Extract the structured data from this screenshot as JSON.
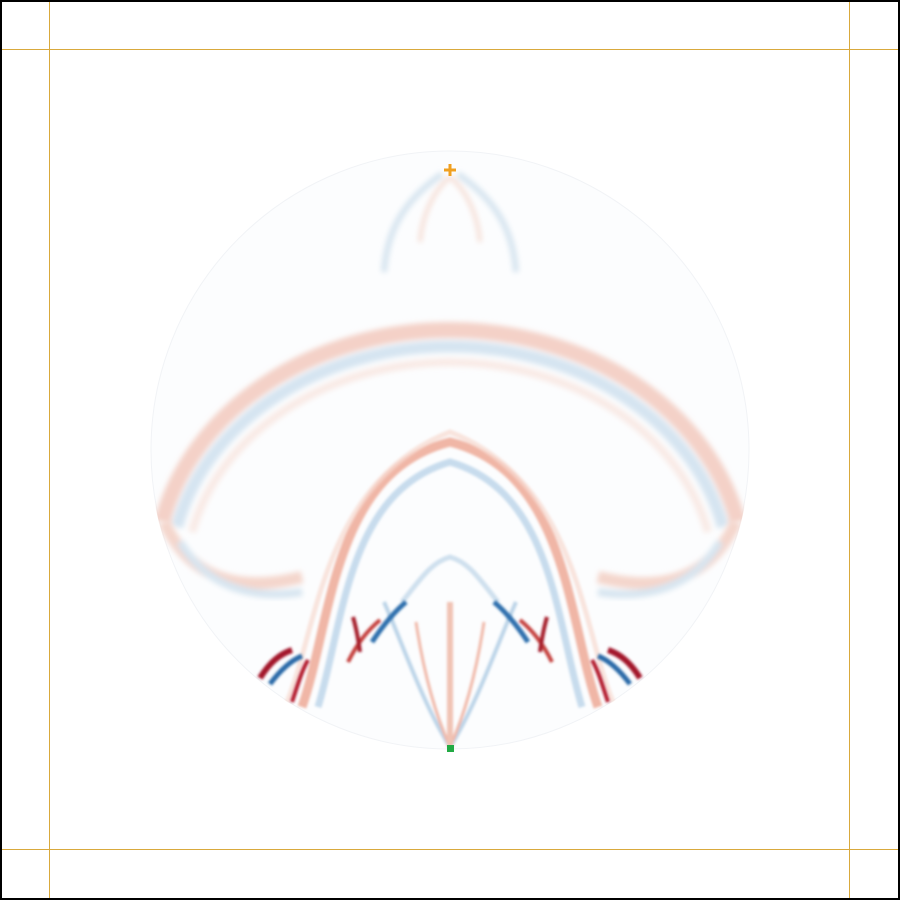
{
  "viewer": {
    "border_color": "#000000",
    "background": "#ffffff",
    "guide_color": "#d9a93c"
  },
  "colormap": {
    "positive": "#b2182b",
    "negative": "#2166ac",
    "zero": "#ffffff"
  },
  "markers": {
    "source": {
      "icon": "plus-icon",
      "color": "#f0a020"
    },
    "receiver": {
      "icon": "square-icon",
      "color": "#22aa44"
    }
  }
}
